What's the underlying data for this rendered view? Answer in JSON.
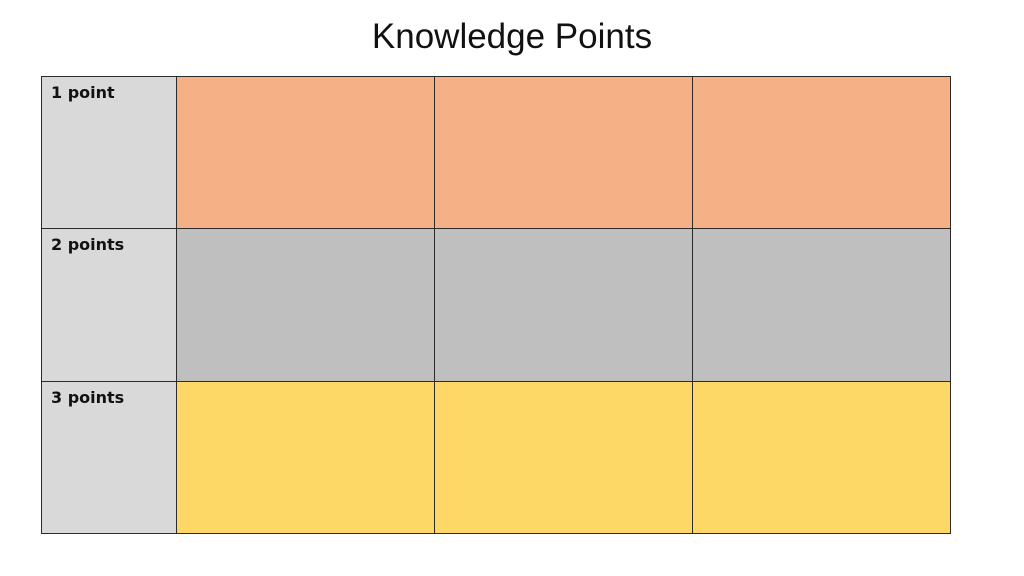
{
  "title": "Knowledge Points",
  "rows": [
    {
      "label": "1 point",
      "color": "#f6b085"
    },
    {
      "label": "2 points",
      "color": "#bfbfbf"
    },
    {
      "label": "3 points",
      "color": "#fed866"
    }
  ],
  "label_bg": "#d9d9d9"
}
